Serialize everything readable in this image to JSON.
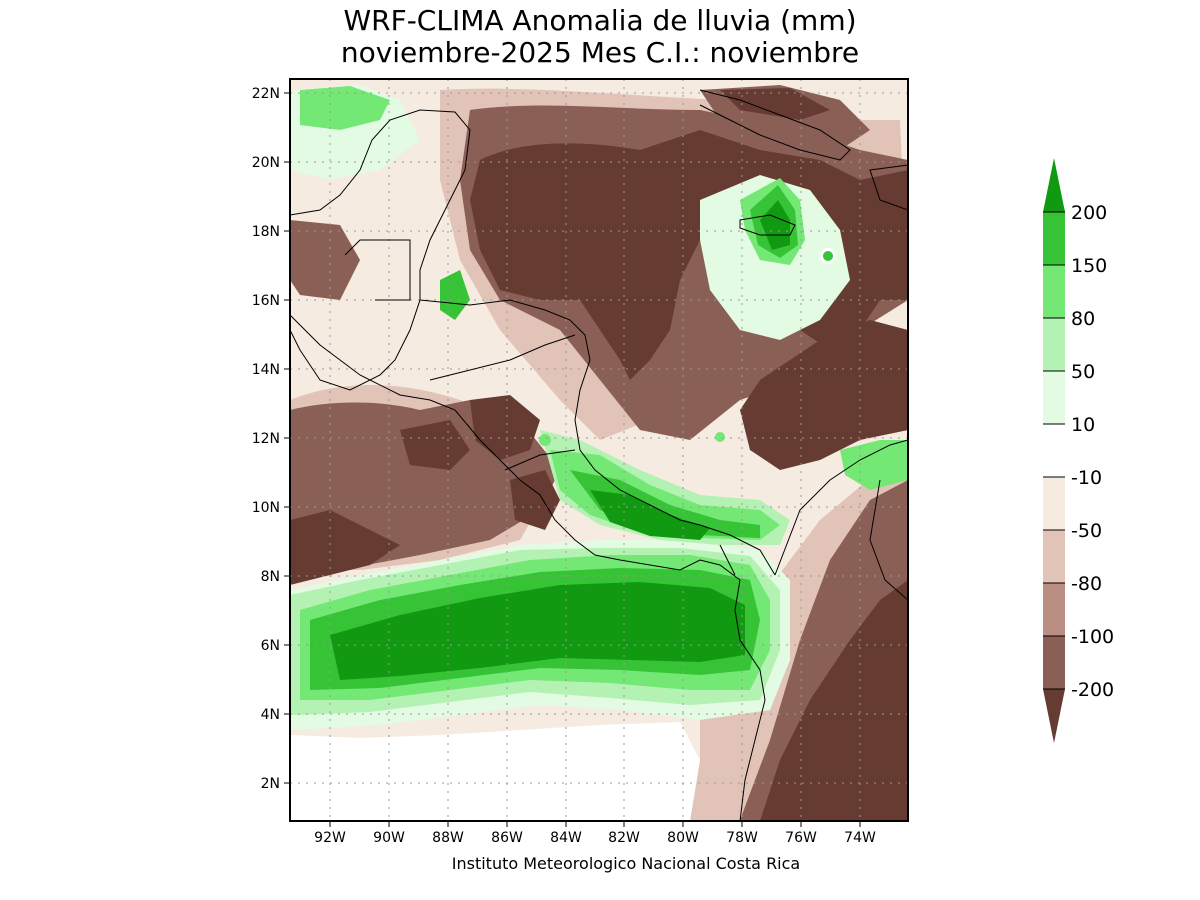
{
  "title_line1": "WRF-CLIMA Anomalia de lluvia (mm)",
  "title_line2": "noviembre-2025 Mes C.I.: noviembre",
  "credit": "Instituto Meteorologico Nacional Costa Rica",
  "lat_ticks": [
    "22N",
    "20N",
    "18N",
    "16N",
    "14N",
    "12N",
    "10N",
    "8N",
    "6N",
    "4N",
    "2N"
  ],
  "lon_ticks": [
    "92W",
    "90W",
    "88W",
    "86W",
    "84W",
    "82W",
    "80W",
    "78W",
    "76W",
    "74W"
  ],
  "legend": {
    "labels": [
      "200",
      "150",
      "80",
      "50",
      "10",
      "-10",
      "-50",
      "-80",
      "-100",
      "-200"
    ],
    "colors": [
      "#119a11",
      "#36c436",
      "#74e874",
      "#b4f2b4",
      "#e2fbe2",
      "#ffffff",
      "#f5ebe1",
      "#e2c3b7",
      "#ba8e82",
      "#8a5f55",
      "#653b32"
    ]
  },
  "colors": {
    "dark_brown": "#653b32",
    "brown": "#8a5f55",
    "mid_brown": "#ba8e82",
    "light_brown": "#e2c3b7",
    "beige": "#f5ebe1",
    "dark_green": "#119a11",
    "green": "#36c436",
    "light_green": "#74e874",
    "pale_green": "#b4f2b4",
    "very_pale_green": "#e2fbe2"
  }
}
